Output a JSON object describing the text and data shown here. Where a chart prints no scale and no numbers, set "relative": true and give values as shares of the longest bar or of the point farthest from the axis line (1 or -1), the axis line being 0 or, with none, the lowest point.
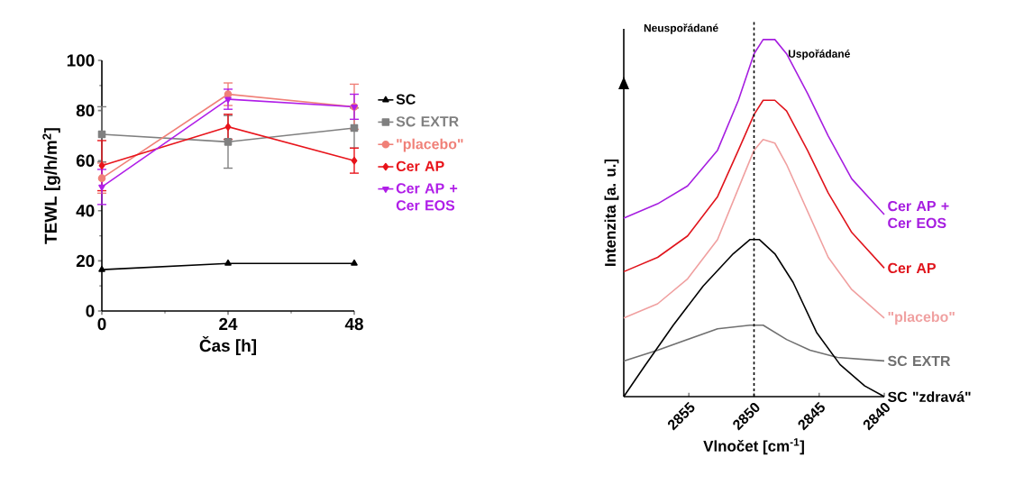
{
  "chart_data": [
    {
      "type": "line",
      "xlabel": "Čas [h]",
      "ylabel": "TEWL [g/h/m$^{2}$]",
      "x": [
        0,
        24,
        48
      ],
      "xlim": [
        0,
        48
      ],
      "xticks": [
        0,
        24,
        48
      ],
      "ylim": [
        0,
        100
      ],
      "yticks": [
        0,
        20,
        40,
        60,
        80,
        100
      ],
      "legend": "right",
      "grid": false,
      "series": [
        {
          "name": "SC",
          "color": "#000000",
          "marker": "triangle",
          "values": [
            16.5,
            19,
            19
          ]
        },
        {
          "name": "SC EXTR",
          "color": "#808080",
          "marker": "square",
          "values": [
            70.5,
            67.5,
            73
          ],
          "errors": [
            11,
            10.5,
            8
          ]
        },
        {
          "name": "\"placebo\"",
          "color": "#f08078",
          "marker": "circle",
          "values": [
            53,
            86.5,
            81.5
          ],
          "errors": [
            6,
            4.5,
            9
          ]
        },
        {
          "name": "Cer AP",
          "color": "#e8141b",
          "marker": "diamond",
          "values": [
            58,
            73.5,
            60
          ],
          "errors": [
            10,
            5,
            5
          ]
        },
        {
          "name": "Cer AP + Cer EOS",
          "color": "#b01ee8",
          "marker": "triangle-down",
          "values": [
            49.5,
            84.5,
            81.5
          ],
          "errors": [
            7,
            4,
            5
          ]
        }
      ]
    },
    {
      "type": "line",
      "relative": true,
      "xlabel": "Vlnočet [cm$^{-1}$]",
      "ylabel": "Intenzita [a. u.]",
      "xlim": [
        2860,
        2840
      ],
      "xticks": [
        2855,
        2850,
        2845,
        2840
      ],
      "marker": "none",
      "line_style": "solid",
      "grid": false,
      "annotations": [
        "Neuspořádané",
        "Uspořádané"
      ],
      "ref_lines": [
        {
          "axis": "x",
          "value": 2850,
          "color": "#000000",
          "line_style": "dashed"
        }
      ],
      "series": [
        {
          "name": "Cer AP + Cer EOS",
          "color": "#a61ee0",
          "x": [
            2860,
            2857.4,
            2855.1,
            2852.8,
            2851.2,
            2850.0,
            2849.3,
            2848.4,
            2847.5,
            2845.9,
            2844.3,
            2842.5,
            2840
          ],
          "values": [
            0.5,
            0.54,
            0.59,
            0.69,
            0.83,
            0.96,
            1.0,
            1.0,
            0.96,
            0.85,
            0.73,
            0.61,
            0.51
          ]
        },
        {
          "name": "Cer AP",
          "color": "#e0141c",
          "x": [
            2860,
            2857.4,
            2855.1,
            2852.8,
            2851.2,
            2850.0,
            2849.3,
            2848.4,
            2847.5,
            2845.9,
            2844.3,
            2842.5,
            2840
          ],
          "values": [
            0.35,
            0.39,
            0.45,
            0.56,
            0.69,
            0.79,
            0.83,
            0.83,
            0.8,
            0.69,
            0.57,
            0.46,
            0.36
          ]
        },
        {
          "name": "\"placebo\"",
          "color": "#f0a0a0",
          "x": [
            2860,
            2857.4,
            2855.1,
            2852.8,
            2850.9,
            2850.0,
            2849.3,
            2848.4,
            2847.5,
            2845.9,
            2844.3,
            2842.5,
            2840
          ],
          "values": [
            0.22,
            0.26,
            0.33,
            0.44,
            0.61,
            0.69,
            0.72,
            0.71,
            0.65,
            0.52,
            0.39,
            0.3,
            0.22
          ]
        },
        {
          "name": "SC EXTR",
          "color": "#707070",
          "x": [
            2860,
            2857.4,
            2855.1,
            2852.8,
            2850.3,
            2849.3,
            2847.5,
            2845.7,
            2843.6,
            2840
          ],
          "values": [
            0.1,
            0.13,
            0.16,
            0.19,
            0.2,
            0.2,
            0.16,
            0.13,
            0.11,
            0.1
          ]
        },
        {
          "name": "SC \"zdravá\"",
          "color": "#000000",
          "x": [
            2860,
            2858.5,
            2856.2,
            2853.9,
            2851.6,
            2850.3,
            2849.6,
            2848.4,
            2847.0,
            2845.2,
            2843.4,
            2841.5,
            2840
          ],
          "values": [
            0,
            0.08,
            0.2,
            0.31,
            0.4,
            0.44,
            0.44,
            0.4,
            0.32,
            0.18,
            0.09,
            0.03,
            0
          ]
        }
      ]
    }
  ]
}
